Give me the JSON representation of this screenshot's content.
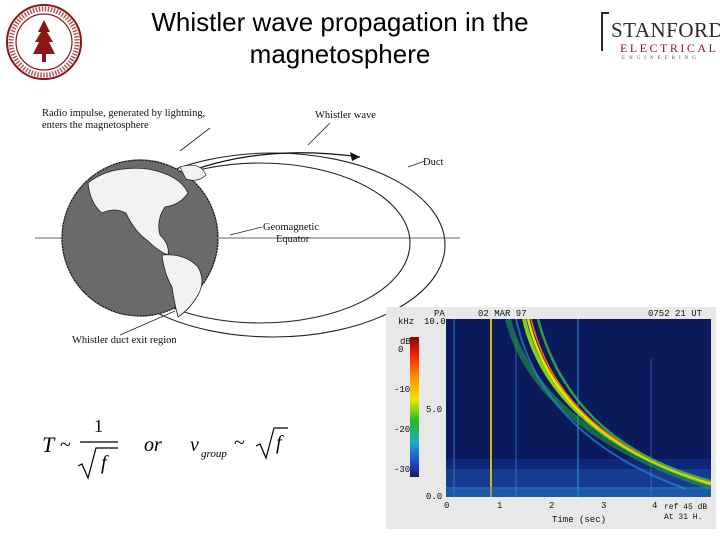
{
  "title": "Whistler wave propagation in the magnetosphere",
  "header": {
    "logo_main": "STANFORD",
    "logo_sub": "ELECTRICAL",
    "logo_sub2": "ENGINEERING"
  },
  "diagram": {
    "label_impulse_1": "Radio impulse, generated by lightning,",
    "label_impulse_2": "enters the magnetosphere",
    "label_whistler": "Whistler wave",
    "label_duct": "Duct",
    "label_equator_1": "Geomagnetic",
    "label_equator_2": "Equator",
    "label_exit": "Whistler duct exit region"
  },
  "formula": {
    "T": "T",
    "sim1": "~",
    "one": "1",
    "f1": "f",
    "or": "or",
    "v": "v",
    "group": "group",
    "sim2": "~",
    "f2": "f"
  },
  "spectrogram": {
    "station": "PA",
    "date": "02 MAR 97",
    "time": "0752 21 UT",
    "khz": "kHz",
    "ytick_top": "10.0",
    "ytick_mid": "5.0",
    "ytick_bottom": "0.0",
    "db_unit": "dB",
    "db_ticks": [
      "0",
      "-10",
      "-20",
      "-30"
    ],
    "xticks": [
      "0",
      "1",
      "2",
      "3",
      "4"
    ],
    "xlabel": "Time (sec)",
    "ref_1": "ref 45 dB",
    "ref_2": "At 31 H."
  },
  "colors": {
    "stanford_red": "#8c1515",
    "spectrogram_bg": "#0a1a5a"
  }
}
